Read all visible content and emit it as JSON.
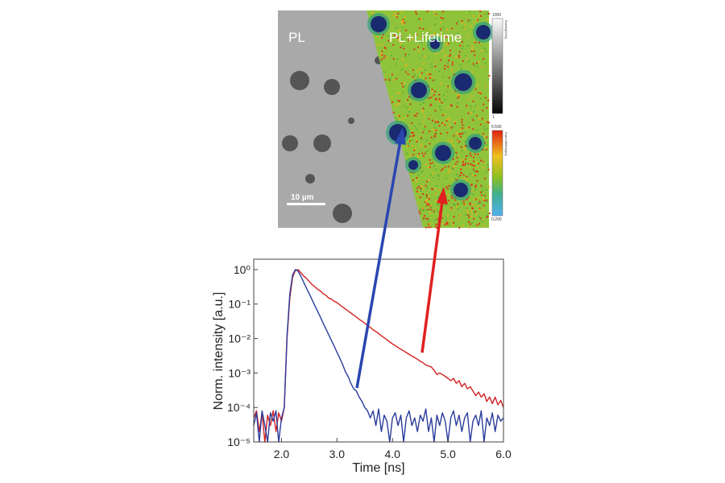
{
  "image_panel": {
    "left_label": "PL",
    "right_label": "PL+Lifetime",
    "scale_bar": "10 µm",
    "colorbar_counts": {
      "max": "1000",
      "min": "1",
      "title": "Events[Cnts]"
    },
    "colorbar_lifetime": {
      "max": "0.500",
      "min": "0.200",
      "title": "Fast Lifetime[ns]",
      "colors": [
        "#e02010",
        "#f0c020",
        "#8cc020",
        "#40b090",
        "#50b0f0"
      ]
    }
  },
  "chart_data": {
    "type": "line",
    "xlabel": "Time [ns]",
    "ylabel": "Norm. intensity [a.u.]",
    "xlim": [
      1.5,
      6.0
    ],
    "ylim": [
      1e-05,
      2
    ],
    "yscale": "log",
    "grid": false,
    "xticks": [
      {
        "v": 2.0,
        "label": "2.0"
      },
      {
        "v": 3.0,
        "label": "3.0"
      },
      {
        "v": 4.0,
        "label": "4.0"
      },
      {
        "v": 5.0,
        "label": "5.0"
      },
      {
        "v": 6.0,
        "label": "6.0"
      }
    ],
    "yticks": [
      {
        "v": 1,
        "label": "10⁰"
      },
      {
        "v": 0.1,
        "label": "10⁻¹"
      },
      {
        "v": 0.01,
        "label": "10⁻²"
      },
      {
        "v": 0.001,
        "label": "10⁻³"
      },
      {
        "v": 0.0001,
        "label": "10⁻⁴"
      },
      {
        "v": 1e-05,
        "label": "10⁻⁵"
      }
    ],
    "x": [
      1.5,
      1.55,
      1.6,
      1.65,
      1.7,
      1.75,
      1.8,
      1.85,
      1.9,
      1.95,
      2.0,
      2.05,
      2.1,
      2.15,
      2.2,
      2.25,
      2.3,
      2.35,
      2.4,
      2.45,
      2.5,
      2.55,
      2.6,
      2.65,
      2.7,
      2.75,
      2.8,
      2.85,
      2.9,
      2.95,
      3.0,
      3.05,
      3.1,
      3.15,
      3.2,
      3.25,
      3.3,
      3.35,
      3.4,
      3.45,
      3.5,
      3.55,
      3.6,
      3.65,
      3.7,
      3.75,
      3.8,
      3.85,
      3.9,
      3.95,
      4.0,
      4.05,
      4.1,
      4.15,
      4.2,
      4.25,
      4.3,
      4.35,
      4.4,
      4.45,
      4.5,
      4.55,
      4.6,
      4.65,
      4.7,
      4.75,
      4.8,
      4.85,
      4.9,
      4.95,
      5.0,
      5.05,
      5.1,
      5.15,
      5.2,
      5.25,
      5.3,
      5.35,
      5.4,
      5.45,
      5.5,
      5.55,
      5.6,
      5.65,
      5.7,
      5.75,
      5.8,
      5.85,
      5.9,
      5.95,
      6.0
    ],
    "series": [
      {
        "color": "#d42020",
        "values": [
          5e-05,
          8e-05,
          2e-05,
          7e-05,
          1e-05,
          6e-05,
          3e-05,
          8e-05,
          2e-05,
          7e-05,
          4e-05,
          0.0001,
          0.01,
          0.15,
          0.6,
          0.95,
          1.0,
          0.8,
          0.65,
          0.56,
          0.45,
          0.37,
          0.32,
          0.27,
          0.24,
          0.2,
          0.18,
          0.15,
          0.14,
          0.12,
          0.11,
          0.095,
          0.083,
          0.072,
          0.063,
          0.055,
          0.048,
          0.042,
          0.036,
          0.032,
          0.028,
          0.024,
          0.021,
          0.018,
          0.016,
          0.014,
          0.012,
          0.0105,
          0.0092,
          0.008,
          0.007,
          0.0062,
          0.0055,
          0.0049,
          0.0044,
          0.0039,
          0.0035,
          0.0031,
          0.0028,
          0.0025,
          0.0022,
          0.002,
          0.0017,
          0.0016,
          0.0015,
          0.0012,
          0.0009,
          0.001,
          0.0009,
          0.0008,
          0.0007,
          0.0006,
          0.0007,
          0.0005,
          0.0006,
          0.0004,
          0.0005,
          0.00035,
          0.0004,
          0.0003,
          0.00022,
          0.00028,
          0.0002,
          0.00025,
          0.00015,
          0.0002,
          0.00013,
          0.0002,
          0.00012,
          0.00016,
          0.0001
        ]
      },
      {
        "color": "#2a3c9c",
        "values": [
          3e-05,
          7e-05,
          1e-05,
          8e-05,
          3e-05,
          1e-05,
          7e-05,
          4e-05,
          8e-05,
          1e-05,
          5e-05,
          0.0001,
          0.012,
          0.2,
          0.7,
          1.0,
          0.9,
          0.63,
          0.43,
          0.29,
          0.2,
          0.135,
          0.09,
          0.062,
          0.042,
          0.028,
          0.019,
          0.013,
          0.0088,
          0.006,
          0.004,
          0.0027,
          0.0018,
          0.0011,
          0.0008,
          0.0005,
          0.00035,
          0.0003,
          0.0002,
          0.00015,
          0.0001,
          8e-05,
          5e-05,
          8e-05,
          3e-05,
          9e-05,
          2e-05,
          6e-05,
          4e-05,
          1e-05,
          5e-05,
          7e-05,
          3e-05,
          6e-05,
          1e-05,
          5e-05,
          8e-05,
          3e-05,
          5e-05,
          2e-05,
          6e-05,
          4e-05,
          9e-05,
          2e-05,
          5e-05,
          1e-05,
          6e-05,
          3e-05,
          7e-05,
          4e-05,
          1e-05,
          5e-05,
          8e-05,
          3e-05,
          6e-05,
          2e-05,
          5e-05,
          7e-05,
          1e-05,
          4e-05,
          6e-05,
          3e-05,
          8e-05,
          1e-05,
          5e-05,
          3e-05,
          7e-05,
          2e-05,
          6e-05,
          4e-05,
          5e-05
        ]
      }
    ]
  }
}
